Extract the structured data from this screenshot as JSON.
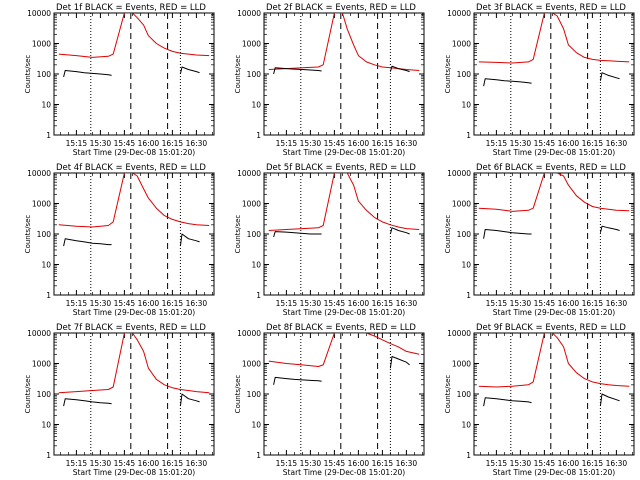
{
  "figure": {
    "xlabel": "Start Time (29-Dec-08 15:01:20)",
    "ylabel": "Counts/sec",
    "x_ticks": [
      "15:15",
      "15:30",
      "15:45",
      "16:00",
      "16:15",
      "16:30"
    ],
    "y_ticks": [
      "1",
      "10",
      "100",
      "1000",
      "10000"
    ]
  },
  "chart_data": [
    {
      "type": "line",
      "title": "Det 1f BLACK = Events, RED = LLD",
      "xlabel": "Start Time (29-Dec-08 15:01:20)",
      "ylabel": "Counts/sec",
      "xlim": [
        "15:01",
        "16:41"
      ],
      "ylim": [
        1,
        10000
      ],
      "yscale": "log",
      "dotted_vlines": [
        "15:24",
        "16:20"
      ],
      "dashed_vlines": [
        "15:49",
        "16:12"
      ],
      "series": [
        {
          "name": "RED = LLD",
          "color": "#e00000",
          "x": [
            "15:04",
            "15:15",
            "15:25",
            "15:35",
            "15:38",
            "15:45",
            "15:50",
            "15:53",
            "15:57",
            "16:00",
            "16:05",
            "16:10",
            "16:15",
            "16:20",
            "16:25",
            "16:30",
            "16:38"
          ],
          "y": [
            450,
            400,
            350,
            380,
            450,
            10000,
            10000,
            7000,
            4000,
            1800,
            1000,
            700,
            550,
            480,
            450,
            420,
            400
          ]
        },
        {
          "name": "BLACK = Events",
          "color": "#000000",
          "x": [
            "15:07",
            "15:08",
            "15:15",
            "15:20",
            "15:25",
            "15:30",
            "15:35",
            "15:37"
          ],
          "y": [
            80,
            130,
            120,
            110,
            105,
            100,
            95,
            90
          ]
        },
        {
          "name": "BLACK = Events",
          "color": "#000000",
          "x": [
            "16:20",
            "16:21",
            "16:25",
            "16:30",
            "16:32"
          ],
          "y": [
            100,
            170,
            140,
            120,
            110
          ]
        }
      ]
    },
    {
      "type": "line",
      "title": "Det 2f BLACK = Events, RED = LLD",
      "xlabel": "Start Time (29-Dec-08 15:01:20)",
      "ylabel": "Counts/sec",
      "xlim": [
        "15:01",
        "16:41"
      ],
      "ylim": [
        1,
        10000
      ],
      "yscale": "log",
      "dotted_vlines": [
        "15:24",
        "16:20"
      ],
      "dashed_vlines": [
        "15:49",
        "16:12"
      ],
      "series": [
        {
          "name": "RED = LLD",
          "color": "#e00000",
          "x": [
            "15:04",
            "15:15",
            "15:25",
            "15:35",
            "15:38",
            "15:45",
            "15:50",
            "15:53",
            "15:57",
            "16:00",
            "16:05",
            "16:10",
            "16:15",
            "16:20",
            "16:25",
            "16:30",
            "16:38"
          ],
          "y": [
            140,
            150,
            160,
            170,
            200,
            10000,
            10000,
            3000,
            900,
            400,
            250,
            200,
            170,
            160,
            150,
            140,
            130
          ]
        },
        {
          "name": "BLACK = Events",
          "color": "#000000",
          "x": [
            "15:07",
            "15:08",
            "15:15",
            "15:20",
            "15:25",
            "15:30",
            "15:35",
            "15:37"
          ],
          "y": [
            100,
            160,
            150,
            145,
            140,
            135,
            130,
            125
          ]
        },
        {
          "name": "BLACK = Events",
          "color": "#000000",
          "x": [
            "16:20",
            "16:21",
            "16:25",
            "16:30",
            "16:32"
          ],
          "y": [
            120,
            180,
            150,
            130,
            120
          ]
        }
      ]
    },
    {
      "type": "line",
      "title": "Det 3f BLACK = Events, RED = LLD",
      "xlabel": "Start Time (29-Dec-08 15:01:20)",
      "ylabel": "Counts/sec",
      "xlim": [
        "15:01",
        "16:41"
      ],
      "ylim": [
        1,
        10000
      ],
      "yscale": "log",
      "dotted_vlines": [
        "15:24",
        "16:20"
      ],
      "dashed_vlines": [
        "15:49",
        "16:12"
      ],
      "series": [
        {
          "name": "RED = LLD",
          "color": "#e00000",
          "x": [
            "15:04",
            "15:15",
            "15:25",
            "15:35",
            "15:38",
            "15:45",
            "15:50",
            "15:53",
            "15:57",
            "16:00",
            "16:05",
            "16:10",
            "16:15",
            "16:20",
            "16:25",
            "16:30",
            "16:38"
          ],
          "y": [
            250,
            240,
            230,
            250,
            300,
            10000,
            10000,
            8000,
            3000,
            900,
            500,
            350,
            300,
            280,
            270,
            260,
            250
          ]
        },
        {
          "name": "BLACK = Events",
          "color": "#000000",
          "x": [
            "15:07",
            "15:08",
            "15:15",
            "15:20",
            "15:25",
            "15:30",
            "15:35",
            "15:37"
          ],
          "y": [
            40,
            70,
            65,
            60,
            58,
            55,
            52,
            50
          ]
        },
        {
          "name": "BLACK = Events",
          "color": "#000000",
          "x": [
            "16:20",
            "16:21",
            "16:25",
            "16:30",
            "16:32"
          ],
          "y": [
            60,
            110,
            90,
            75,
            70
          ]
        }
      ]
    },
    {
      "type": "line",
      "title": "Det 4f BLACK = Events, RED = LLD",
      "xlabel": "Start Time (29-Dec-08 15:01:20)",
      "ylabel": "Counts/sec",
      "xlim": [
        "15:01",
        "16:41"
      ],
      "ylim": [
        1,
        10000
      ],
      "yscale": "log",
      "dotted_vlines": [
        "15:24",
        "16:20"
      ],
      "dashed_vlines": [
        "15:49",
        "16:12"
      ],
      "series": [
        {
          "name": "RED = LLD",
          "color": "#e00000",
          "x": [
            "15:04",
            "15:15",
            "15:25",
            "15:35",
            "15:38",
            "15:45",
            "15:50",
            "15:53",
            "15:57",
            "16:00",
            "16:05",
            "16:10",
            "16:15",
            "16:20",
            "16:25",
            "16:30",
            "16:38"
          ],
          "y": [
            200,
            180,
            170,
            190,
            250,
            10000,
            10000,
            8000,
            3000,
            1500,
            700,
            400,
            300,
            250,
            220,
            200,
            190
          ]
        },
        {
          "name": "BLACK = Events",
          "color": "#000000",
          "x": [
            "15:07",
            "15:08",
            "15:15",
            "15:20",
            "15:25",
            "15:30",
            "15:35",
            "15:37"
          ],
          "y": [
            40,
            70,
            60,
            55,
            50,
            48,
            45,
            45
          ]
        },
        {
          "name": "BLACK = Events",
          "color": "#000000",
          "x": [
            "16:20",
            "16:21",
            "16:25",
            "16:30",
            "16:32"
          ],
          "y": [
            40,
            100,
            70,
            60,
            55
          ]
        }
      ]
    },
    {
      "type": "line",
      "title": "Det 5f BLACK = Events, RED = LLD",
      "xlabel": "Start Time (29-Dec-08 15:01:20)",
      "ylabel": "Counts/sec",
      "xlim": [
        "15:01",
        "16:41"
      ],
      "ylim": [
        1,
        10000
      ],
      "yscale": "log",
      "dotted_vlines": [
        "15:24",
        "16:20"
      ],
      "dashed_vlines": [
        "15:49",
        "16:12"
      ],
      "series": [
        {
          "name": "RED = LLD",
          "color": "#e00000",
          "x": [
            "15:04",
            "15:15",
            "15:25",
            "15:35",
            "15:38",
            "15:45",
            "15:50",
            "15:53",
            "15:57",
            "16:00",
            "16:05",
            "16:10",
            "16:15",
            "16:20",
            "16:25",
            "16:30",
            "16:38"
          ],
          "y": [
            130,
            140,
            150,
            160,
            190,
            10000,
            10000,
            10000,
            4000,
            1200,
            600,
            350,
            250,
            200,
            170,
            150,
            140
          ]
        },
        {
          "name": "BLACK = Events",
          "color": "#000000",
          "x": [
            "15:07",
            "15:08",
            "15:15",
            "15:20",
            "15:25",
            "15:30",
            "15:35",
            "15:37"
          ],
          "y": [
            80,
            120,
            115,
            110,
            105,
            100,
            100,
            100
          ]
        },
        {
          "name": "BLACK = Events",
          "color": "#000000",
          "x": [
            "16:20",
            "16:21",
            "16:25",
            "16:30",
            "16:32"
          ],
          "y": [
            100,
            160,
            130,
            110,
            100
          ]
        }
      ]
    },
    {
      "type": "line",
      "title": "Det 6f BLACK = Events, RED = LLD",
      "xlabel": "Start Time (29-Dec-08 15:01:20)",
      "ylabel": "Counts/sec",
      "xlim": [
        "15:01",
        "16:41"
      ],
      "ylim": [
        1,
        10000
      ],
      "yscale": "log",
      "dotted_vlines": [
        "15:24",
        "16:20"
      ],
      "dashed_vlines": [
        "15:49",
        "16:12"
      ],
      "series": [
        {
          "name": "RED = LLD",
          "color": "#e00000",
          "x": [
            "15:04",
            "15:15",
            "15:25",
            "15:35",
            "15:38",
            "15:45",
            "15:50",
            "15:53",
            "15:57",
            "16:00",
            "16:05",
            "16:10",
            "16:15",
            "16:20",
            "16:25",
            "16:30",
            "16:38"
          ],
          "y": [
            700,
            650,
            550,
            600,
            700,
            10000,
            10000,
            10000,
            8000,
            4000,
            1800,
            1100,
            800,
            700,
            650,
            600,
            580
          ]
        },
        {
          "name": "BLACK = Events",
          "color": "#000000",
          "x": [
            "15:07",
            "15:08",
            "15:15",
            "15:20",
            "15:25",
            "15:30",
            "15:35",
            "15:37"
          ],
          "y": [
            70,
            140,
            130,
            120,
            110,
            105,
            100,
            100
          ]
        },
        {
          "name": "BLACK = Events",
          "color": "#000000",
          "x": [
            "16:20",
            "16:21",
            "16:25",
            "16:30",
            "16:32"
          ],
          "y": [
            110,
            180,
            160,
            140,
            130
          ]
        }
      ]
    },
    {
      "type": "line",
      "title": "Det 7f BLACK = Events, RED = LLD",
      "xlabel": "Start Time (29-Dec-08 15:01:20)",
      "ylabel": "Counts/sec",
      "xlim": [
        "15:01",
        "16:41"
      ],
      "ylim": [
        1,
        10000
      ],
      "yscale": "log",
      "dotted_vlines": [
        "15:24",
        "16:20"
      ],
      "dashed_vlines": [
        "15:49",
        "16:12"
      ],
      "series": [
        {
          "name": "RED = LLD",
          "color": "#e00000",
          "x": [
            "15:04",
            "15:15",
            "15:25",
            "15:35",
            "15:38",
            "15:45",
            "15:50",
            "15:53",
            "15:57",
            "16:00",
            "16:05",
            "16:10",
            "16:15",
            "16:20",
            "16:25",
            "16:30",
            "16:38"
          ],
          "y": [
            110,
            120,
            130,
            140,
            170,
            10000,
            10000,
            6000,
            2500,
            700,
            300,
            200,
            160,
            140,
            130,
            120,
            110
          ]
        },
        {
          "name": "BLACK = Events",
          "color": "#000000",
          "x": [
            "15:07",
            "15:08",
            "15:15",
            "15:20",
            "15:25",
            "15:30",
            "15:35",
            "15:37"
          ],
          "y": [
            40,
            70,
            65,
            60,
            55,
            52,
            50,
            48
          ]
        },
        {
          "name": "BLACK = Events",
          "color": "#000000",
          "x": [
            "16:20",
            "16:21",
            "16:25",
            "16:30",
            "16:32"
          ],
          "y": [
            40,
            100,
            70,
            60,
            55
          ]
        }
      ]
    },
    {
      "type": "line",
      "title": "Det 8f BLACK = Events, RED = LLD",
      "xlabel": "Start Time (29-Dec-08 15:01:20)",
      "ylabel": "Counts/sec",
      "xlim": [
        "15:01",
        "16:41"
      ],
      "ylim": [
        1,
        10000
      ],
      "yscale": "log",
      "dotted_vlines": [
        "15:24",
        "16:20"
      ],
      "dashed_vlines": [
        "15:49",
        "16:12"
      ],
      "series": [
        {
          "name": "RED = LLD",
          "color": "#e00000",
          "x": [
            "15:04",
            "15:15",
            "15:25",
            "15:35",
            "15:38",
            "15:45",
            "15:50",
            "15:53",
            "15:57",
            "16:00",
            "16:05",
            "16:10",
            "16:15",
            "16:20",
            "16:25",
            "16:30",
            "16:38"
          ],
          "y": [
            1200,
            1000,
            900,
            800,
            900,
            10000,
            10000,
            10000,
            10000,
            10000,
            10000,
            8000,
            6000,
            4500,
            3500,
            2500,
            2000
          ]
        },
        {
          "name": "BLACK = Events",
          "color": "#000000",
          "x": [
            "15:07",
            "15:08",
            "15:15",
            "15:20",
            "15:25",
            "15:30",
            "15:35",
            "15:37"
          ],
          "y": [
            200,
            350,
            320,
            300,
            290,
            280,
            270,
            260
          ]
        },
        {
          "name": "BLACK = Events",
          "color": "#000000",
          "x": [
            "16:20",
            "16:21",
            "16:25",
            "16:30",
            "16:32"
          ],
          "y": [
            700,
            1700,
            1400,
            1100,
            900
          ]
        }
      ]
    },
    {
      "type": "line",
      "title": "Det 9f BLACK = Events, RED = LLD",
      "xlabel": "Start Time (29-Dec-08 15:01:20)",
      "ylabel": "Counts/sec",
      "xlim": [
        "15:01",
        "16:41"
      ],
      "ylim": [
        1,
        10000
      ],
      "yscale": "log",
      "dotted_vlines": [
        "15:24",
        "16:20"
      ],
      "dashed_vlines": [
        "15:49",
        "16:12"
      ],
      "series": [
        {
          "name": "RED = LLD",
          "color": "#e00000",
          "x": [
            "15:04",
            "15:15",
            "15:25",
            "15:35",
            "15:38",
            "15:45",
            "15:50",
            "15:53",
            "15:57",
            "16:00",
            "16:05",
            "16:10",
            "16:15",
            "16:20",
            "16:25",
            "16:30",
            "16:38"
          ],
          "y": [
            180,
            170,
            180,
            200,
            250,
            10000,
            10000,
            7000,
            3500,
            1000,
            500,
            320,
            250,
            220,
            200,
            190,
            180
          ]
        },
        {
          "name": "BLACK = Events",
          "color": "#000000",
          "x": [
            "15:07",
            "15:08",
            "15:15",
            "15:20",
            "15:25",
            "15:30",
            "15:35",
            "15:37"
          ],
          "y": [
            40,
            75,
            70,
            65,
            60,
            58,
            55,
            52
          ]
        },
        {
          "name": "BLACK = Events",
          "color": "#000000",
          "x": [
            "16:20",
            "16:21",
            "16:25",
            "16:30",
            "16:32"
          ],
          "y": [
            40,
            100,
            80,
            65,
            60
          ]
        }
      ]
    }
  ]
}
